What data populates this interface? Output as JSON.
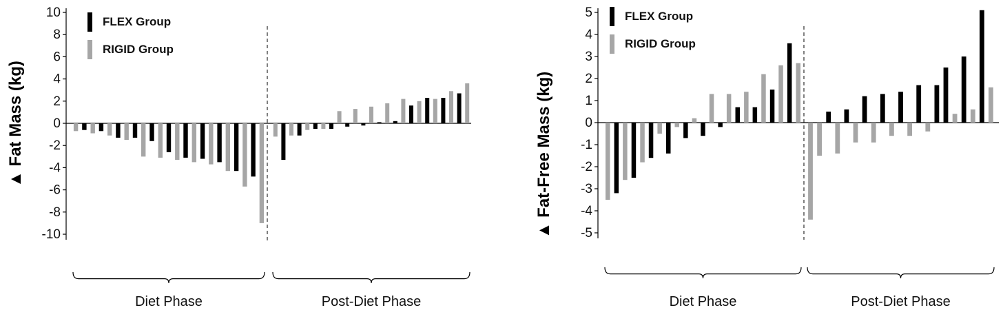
{
  "colors": {
    "flex": "#000000",
    "rigid": "#a6a6a6"
  },
  "chart_data": [
    {
      "type": "bar",
      "ylabel": "▲ Fat Mass (kg)",
      "ylim": [
        -10,
        10
      ],
      "yticks": [
        10,
        8,
        6,
        4,
        2,
        0,
        -2,
        -4,
        -6,
        -8,
        -10
      ],
      "grid": false,
      "legend_position": "top-left",
      "series": [
        {
          "name": "FLEX Group",
          "color": "#000000"
        },
        {
          "name": "RIGID Group",
          "color": "#a6a6a6"
        }
      ],
      "phases": [
        {
          "label": "Diet Phase",
          "bars": [
            [
              "RIGID Group",
              -0.7
            ],
            [
              "FLEX Group",
              -0.6
            ],
            [
              "RIGID Group",
              -0.9
            ],
            [
              "FLEX Group",
              -0.7
            ],
            [
              "RIGID Group",
              -1.1
            ],
            [
              "FLEX Group",
              -1.3
            ],
            [
              "RIGID Group",
              -1.5
            ],
            [
              "FLEX Group",
              -1.3
            ],
            [
              "RIGID Group",
              -3.0
            ],
            [
              "FLEX Group",
              -1.6
            ],
            [
              "RIGID Group",
              -3.1
            ],
            [
              "FLEX Group",
              -2.6
            ],
            [
              "RIGID Group",
              -3.3
            ],
            [
              "FLEX Group",
              -3.1
            ],
            [
              "RIGID Group",
              -3.5
            ],
            [
              "FLEX Group",
              -3.2
            ],
            [
              "RIGID Group",
              -3.7
            ],
            [
              "FLEX Group",
              -3.5
            ],
            [
              "RIGID Group",
              -4.3
            ],
            [
              "FLEX Group",
              -4.3
            ],
            [
              "RIGID Group",
              -5.7
            ],
            [
              "FLEX Group",
              -4.8
            ],
            [
              "RIGID Group",
              -9.0
            ]
          ]
        },
        {
          "label": "Post-Diet Phase",
          "bars": [
            [
              "RIGID Group",
              -1.2
            ],
            [
              "FLEX Group",
              -3.3
            ],
            [
              "RIGID Group",
              -1.1
            ],
            [
              "FLEX Group",
              -1.1
            ],
            [
              "RIGID Group",
              -0.6
            ],
            [
              "FLEX Group",
              -0.5
            ],
            [
              "RIGID Group",
              -0.5
            ],
            [
              "FLEX Group",
              -0.5
            ],
            [
              "RIGID Group",
              1.1
            ],
            [
              "FLEX Group",
              -0.3
            ],
            [
              "RIGID Group",
              1.3
            ],
            [
              "FLEX Group",
              -0.2
            ],
            [
              "RIGID Group",
              1.5
            ],
            [
              "FLEX Group",
              0.1
            ],
            [
              "RIGID Group",
              1.8
            ],
            [
              "FLEX Group",
              0.2
            ],
            [
              "RIGID Group",
              2.2
            ],
            [
              "FLEX Group",
              1.6
            ],
            [
              "RIGID Group",
              2.0
            ],
            [
              "FLEX Group",
              2.3
            ],
            [
              "RIGID Group",
              2.2
            ],
            [
              "FLEX Group",
              2.3
            ],
            [
              "RIGID Group",
              2.9
            ],
            [
              "FLEX Group",
              2.7
            ],
            [
              "RIGID Group",
              3.6
            ]
          ]
        }
      ]
    },
    {
      "type": "bar",
      "ylabel": "▲ Fat-Free Mass (kg)",
      "ylim": [
        -5,
        5
      ],
      "yticks": [
        5,
        4,
        3,
        2,
        1,
        0,
        -1,
        -2,
        -3,
        -4,
        -5
      ],
      "grid": false,
      "legend_position": "top-left",
      "series": [
        {
          "name": "FLEX Group",
          "color": "#000000"
        },
        {
          "name": "RIGID Group",
          "color": "#a6a6a6"
        }
      ],
      "phases": [
        {
          "label": "Diet Phase",
          "bars": [
            [
              "RIGID Group",
              -3.5
            ],
            [
              "FLEX Group",
              -3.2
            ],
            [
              "RIGID Group",
              -2.6
            ],
            [
              "FLEX Group",
              -2.5
            ],
            [
              "RIGID Group",
              -1.8
            ],
            [
              "FLEX Group",
              -1.6
            ],
            [
              "RIGID Group",
              -0.5
            ],
            [
              "FLEX Group",
              -1.4
            ],
            [
              "RIGID Group",
              -0.2
            ],
            [
              "FLEX Group",
              -0.7
            ],
            [
              "RIGID Group",
              0.2
            ],
            [
              "FLEX Group",
              -0.6
            ],
            [
              "RIGID Group",
              1.3
            ],
            [
              "FLEX Group",
              -0.2
            ],
            [
              "RIGID Group",
              1.3
            ],
            [
              "FLEX Group",
              0.7
            ],
            [
              "RIGID Group",
              1.4
            ],
            [
              "FLEX Group",
              0.7
            ],
            [
              "RIGID Group",
              2.2
            ],
            [
              "FLEX Group",
              1.5
            ],
            [
              "RIGID Group",
              2.6
            ],
            [
              "FLEX Group",
              3.6
            ],
            [
              "RIGID Group",
              2.7
            ]
          ]
        },
        {
          "label": "Post-Diet Phase",
          "bars": [
            [
              "RIGID Group",
              -4.4
            ],
            [
              "RIGID Group",
              -1.5
            ],
            [
              "FLEX Group",
              0.5
            ],
            [
              "RIGID Group",
              -1.4
            ],
            [
              "FLEX Group",
              0.6
            ],
            [
              "RIGID Group",
              -0.9
            ],
            [
              "FLEX Group",
              1.2
            ],
            [
              "RIGID Group",
              -0.9
            ],
            [
              "FLEX Group",
              1.3
            ],
            [
              "RIGID Group",
              -0.6
            ],
            [
              "FLEX Group",
              1.4
            ],
            [
              "RIGID Group",
              -0.6
            ],
            [
              "FLEX Group",
              1.7
            ],
            [
              "RIGID Group",
              -0.4
            ],
            [
              "FLEX Group",
              1.7
            ],
            [
              "FLEX Group",
              2.5
            ],
            [
              "RIGID Group",
              0.4
            ],
            [
              "FLEX Group",
              3.0
            ],
            [
              "RIGID Group",
              0.6
            ],
            [
              "FLEX Group",
              5.1
            ],
            [
              "RIGID Group",
              1.6
            ]
          ]
        }
      ]
    }
  ]
}
